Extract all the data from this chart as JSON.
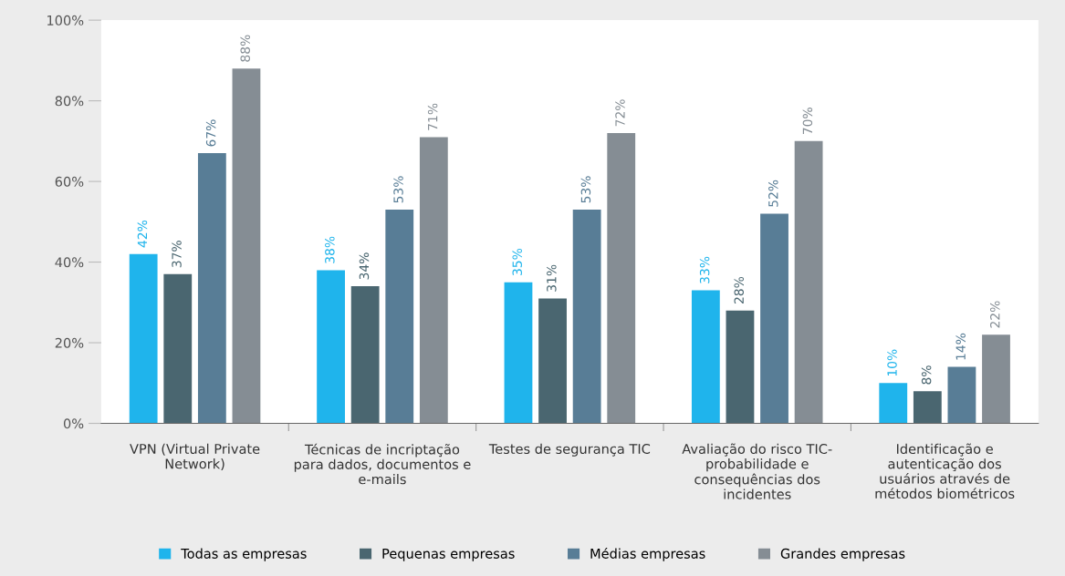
{
  "chart_data": {
    "type": "bar",
    "categories": [
      "VPN (Virtual Private Network)",
      "Técnicas de incriptação para dados, documentos e e-mails",
      "Testes de segurança TIC",
      "Avaliação do risco TIC-probabilidade e consequências dos incidentes",
      "Identificação e autenticação dos usuários através de métodos biométricos"
    ],
    "series": [
      {
        "name": "Todas as empresas",
        "color": "#1fb4ec",
        "values": [
          42,
          38,
          35,
          33,
          10
        ],
        "value_labels": [
          "42%",
          "38%",
          "35%",
          "33%",
          "10%"
        ]
      },
      {
        "name": "Pequenas empresas",
        "color": "#4a6670",
        "values": [
          37,
          34,
          31,
          28,
          8
        ],
        "value_labels": [
          "37%",
          "34%",
          "31%",
          "28%",
          "8%"
        ]
      },
      {
        "name": "Médias empresas",
        "color": "#587d96",
        "values": [
          67,
          53,
          53,
          52,
          14
        ],
        "value_labels": [
          "67%",
          "53%",
          "53%",
          "52%",
          "14%"
        ]
      },
      {
        "name": "Grandes empresas",
        "color": "#858d94",
        "values": [
          88,
          71,
          72,
          70,
          22
        ],
        "value_labels": [
          "88%",
          "71%",
          "72%",
          "70%",
          "22%"
        ]
      }
    ],
    "ylim": [
      0,
      100
    ],
    "yticks": [
      {
        "value": 0,
        "label": "0%"
      },
      {
        "value": 20,
        "label": "20%"
      },
      {
        "value": 40,
        "label": "40%"
      },
      {
        "value": 60,
        "label": "60%"
      },
      {
        "value": 80,
        "label": "80%"
      },
      {
        "value": 100,
        "label": "100%"
      }
    ],
    "grid": false,
    "legend": "bottom"
  }
}
